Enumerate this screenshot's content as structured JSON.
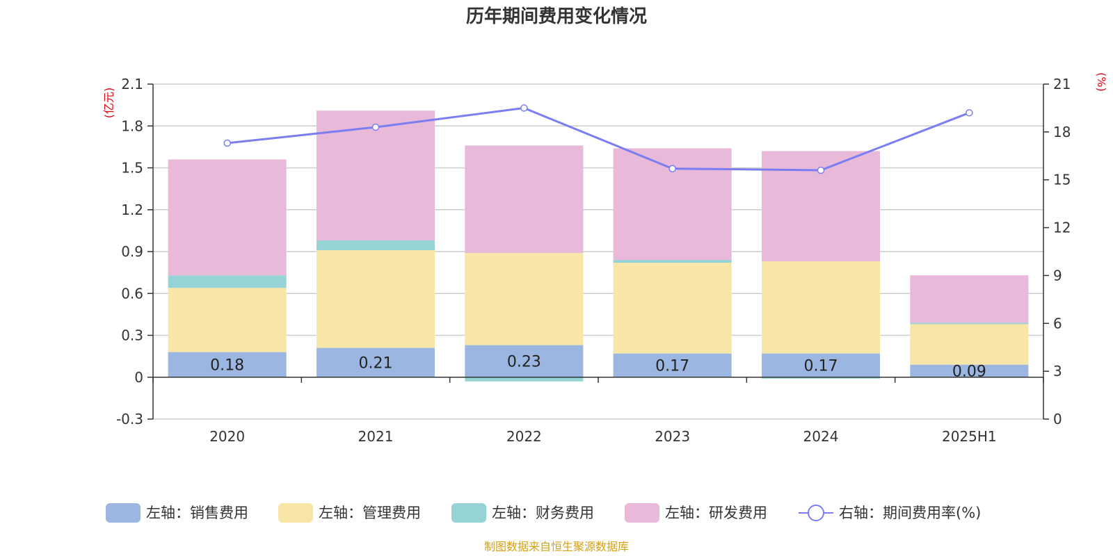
{
  "chart_data": {
    "type": "bar",
    "title": "历年期间费用变化情况",
    "categories": [
      "2020",
      "2021",
      "2022",
      "2023",
      "2024",
      "2025H1"
    ],
    "left_axis": {
      "unit": "(亿元)",
      "ylim": [
        -0.3,
        2.1
      ],
      "ticks": [
        "-0.3",
        "0",
        "0.3",
        "0.6",
        "0.9",
        "1.2",
        "1.5",
        "1.8",
        "2.1"
      ]
    },
    "right_axis": {
      "unit": "(%)",
      "ylim": [
        0,
        21
      ],
      "ticks": [
        "0",
        "3",
        "6",
        "9",
        "12",
        "15",
        "18",
        "21"
      ]
    },
    "series": [
      {
        "name": "左轴：销售费用",
        "type": "bar",
        "color": "#9bb7e1",
        "values": [
          0.18,
          0.21,
          0.23,
          0.17,
          0.17,
          0.09
        ],
        "labels": [
          "0.18",
          "0.21",
          "0.23",
          "0.17",
          "0.17",
          "0.09"
        ]
      },
      {
        "name": "左轴：管理费用",
        "type": "bar",
        "color": "#f8e6a8",
        "values": [
          0.46,
          0.7,
          0.66,
          0.65,
          0.66,
          0.29
        ]
      },
      {
        "name": "左轴：财务费用",
        "type": "bar",
        "color": "#96d3d4",
        "values": [
          0.09,
          0.07,
          -0.03,
          0.02,
          -0.01,
          0.01
        ]
      },
      {
        "name": "左轴：研发费用",
        "type": "bar",
        "color": "#e8b9d9",
        "values": [
          0.83,
          0.93,
          0.77,
          0.8,
          0.79,
          0.34
        ]
      },
      {
        "name": "右轴：期间费用率(%)",
        "type": "line",
        "color": "#7a7ef0",
        "values": [
          17.3,
          18.3,
          19.5,
          15.7,
          15.6,
          19.2
        ]
      }
    ],
    "grid": true,
    "legend_position": "bottom"
  },
  "footer": {
    "source": "制图数据来自恒生聚源数据库"
  }
}
